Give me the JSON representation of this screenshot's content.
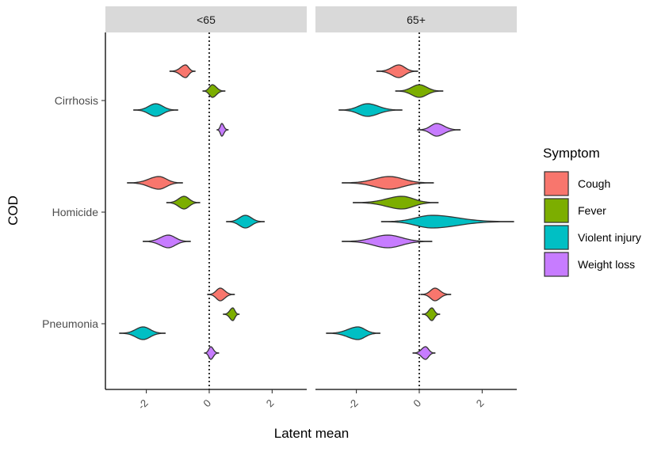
{
  "chart_data": {
    "type": "violin",
    "xlabel": "Latent mean",
    "ylabel": "COD",
    "xlim": [
      -3.3,
      3.1
    ],
    "x_ticks": [
      -2,
      0,
      2
    ],
    "x_tick_labels": [
      "-2",
      "0",
      "2"
    ],
    "reference_line_x": 0,
    "grid": false,
    "legend": {
      "title": "Symptom",
      "position": "right"
    },
    "facets": [
      "<65",
      "65+"
    ],
    "categories": [
      "Cirrhosis",
      "Homicide",
      "Pneumonia"
    ],
    "series": [
      {
        "name": "Cough",
        "color": "#F8766D"
      },
      {
        "name": "Fever",
        "color": "#7CAE00"
      },
      {
        "name": "Violent injury",
        "color": "#00BFC4"
      },
      {
        "name": "Weight loss",
        "color": "#C77CFF"
      }
    ],
    "distributions": [
      {
        "facet": "<65",
        "category": "Cirrhosis",
        "series": "Cough",
        "center": -0.75,
        "min": -1.25,
        "max": -0.45
      },
      {
        "facet": "<65",
        "category": "Cirrhosis",
        "series": "Fever",
        "center": 0.1,
        "min": -0.2,
        "max": 0.5
      },
      {
        "facet": "<65",
        "category": "Cirrhosis",
        "series": "Violent injury",
        "center": -1.7,
        "min": -2.4,
        "max": -1.0
      },
      {
        "facet": "<65",
        "category": "Cirrhosis",
        "series": "Weight loss",
        "center": 0.4,
        "min": 0.25,
        "max": 0.6
      },
      {
        "facet": "<65",
        "category": "Homicide",
        "series": "Cough",
        "center": -1.6,
        "min": -2.6,
        "max": -0.85
      },
      {
        "facet": "<65",
        "category": "Homicide",
        "series": "Fever",
        "center": -0.8,
        "min": -1.35,
        "max": -0.3
      },
      {
        "facet": "<65",
        "category": "Homicide",
        "series": "Violent injury",
        "center": 1.15,
        "min": 0.55,
        "max": 1.75
      },
      {
        "facet": "<65",
        "category": "Homicide",
        "series": "Weight loss",
        "center": -1.3,
        "min": -2.1,
        "max": -0.6
      },
      {
        "facet": "<65",
        "category": "Pneumonia",
        "series": "Cough",
        "center": 0.35,
        "min": -0.05,
        "max": 0.8
      },
      {
        "facet": "<65",
        "category": "Pneumonia",
        "series": "Fever",
        "center": 0.75,
        "min": 0.45,
        "max": 0.95
      },
      {
        "facet": "<65",
        "category": "Pneumonia",
        "series": "Violent injury",
        "center": -2.1,
        "min": -2.85,
        "max": -1.4
      },
      {
        "facet": "<65",
        "category": "Pneumonia",
        "series": "Weight loss",
        "center": 0.05,
        "min": -0.15,
        "max": 0.3
      },
      {
        "facet": "65+",
        "category": "Cirrhosis",
        "series": "Cough",
        "center": -0.65,
        "min": -1.35,
        "max": -0.05
      },
      {
        "facet": "65+",
        "category": "Cirrhosis",
        "series": "Fever",
        "center": 0.0,
        "min": -0.75,
        "max": 0.75
      },
      {
        "facet": "65+",
        "category": "Cirrhosis",
        "series": "Violent injury",
        "center": -1.65,
        "min": -2.55,
        "max": -0.55
      },
      {
        "facet": "65+",
        "category": "Cirrhosis",
        "series": "Weight loss",
        "center": 0.55,
        "min": -0.05,
        "max": 1.3
      },
      {
        "facet": "65+",
        "category": "Homicide",
        "series": "Cough",
        "center": -0.95,
        "min": -2.45,
        "max": 0.45
      },
      {
        "facet": "65+",
        "category": "Homicide",
        "series": "Fever",
        "center": -0.55,
        "min": -2.1,
        "max": 0.6
      },
      {
        "facet": "65+",
        "category": "Homicide",
        "series": "Violent injury",
        "center": 0.4,
        "min": -1.2,
        "max": 3.0
      },
      {
        "facet": "65+",
        "category": "Homicide",
        "series": "Weight loss",
        "center": -1.0,
        "min": -2.45,
        "max": 0.4
      },
      {
        "facet": "65+",
        "category": "Pneumonia",
        "series": "Cough",
        "center": 0.5,
        "min": 0.05,
        "max": 1.0
      },
      {
        "facet": "65+",
        "category": "Pneumonia",
        "series": "Fever",
        "center": 0.4,
        "min": 0.1,
        "max": 0.65
      },
      {
        "facet": "65+",
        "category": "Pneumonia",
        "series": "Violent injury",
        "center": -1.95,
        "min": -2.95,
        "max": -1.25
      },
      {
        "facet": "65+",
        "category": "Pneumonia",
        "series": "Weight loss",
        "center": 0.2,
        "min": -0.2,
        "max": 0.5
      }
    ]
  }
}
